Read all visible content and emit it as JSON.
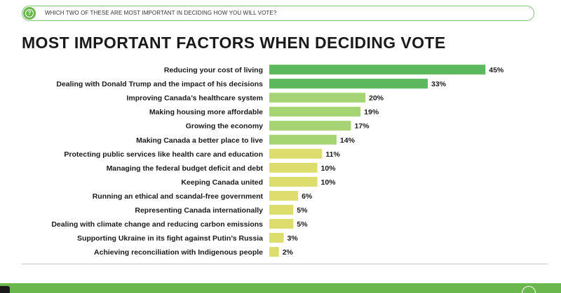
{
  "question": {
    "icon": "question-mark-icon",
    "icon_glyph": "?",
    "text": "WHICH TWO OF THESE ARE MOST IMPORTANT IN DECIDING HOW YOU WILL VOTE?"
  },
  "title": "MOST IMPORTANT FACTORS WHEN DECIDING VOTE",
  "colors": {
    "accent": "#6ab84d",
    "top_bar": "#5cb85c",
    "mid_bar": "#a6d473",
    "low_bar": "#dddd6d"
  },
  "chart_data": {
    "type": "bar",
    "orientation": "horizontal",
    "title": "MOST IMPORTANT FACTORS WHEN DECIDING VOTE",
    "xlabel": "",
    "ylabel": "",
    "unit": "%",
    "xlim": [
      0,
      50
    ],
    "grid": false,
    "legend": "none",
    "categories": [
      "Reducing your cost of living",
      "Dealing with Donald Trump and the impact of his decisions",
      "Improving Canada’s healthcare system",
      "Making housing more affordable",
      "Growing the economy",
      "Making Canada a better place to live",
      "Protecting public services like health care and education",
      "Managing the federal budget deficit and debt",
      "Keeping Canada united",
      "Running an ethical and scandal-free government",
      "Representing Canada internationally",
      "Dealing with climate change and reducing carbon emissions",
      "Supporting Ukraine in its fight against Putin’s Russia",
      "Achieving reconciliation with Indigenous people"
    ],
    "values": [
      45,
      33,
      20,
      19,
      17,
      14,
      11,
      10,
      10,
      6,
      5,
      5,
      3,
      2
    ],
    "value_labels": [
      "45%",
      "33%",
      "20%",
      "19%",
      "17%",
      "14%",
      "11%",
      "10%",
      "10%",
      "6%",
      "5%",
      "5%",
      "3%",
      "2%"
    ],
    "bar_colors": [
      "#5cb85c",
      "#5cb85c",
      "#a6d473",
      "#a6d473",
      "#a6d473",
      "#a6d473",
      "#dddd6d",
      "#dddd6d",
      "#dddd6d",
      "#dddd6d",
      "#dddd6d",
      "#dddd6d",
      "#dddd6d",
      "#dddd6d"
    ]
  }
}
